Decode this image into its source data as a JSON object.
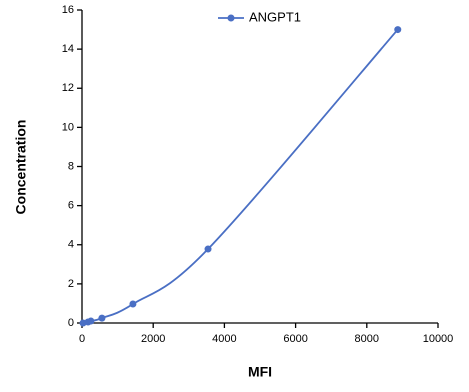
{
  "chart_data": {
    "type": "line",
    "x_label": "MFI",
    "y_label": "Concentration",
    "x": [
      30,
      170,
      250,
      560,
      1430,
      3540,
      8870
    ],
    "series": [
      {
        "name": "ANGPT1",
        "color": "#4a6fc4",
        "values": [
          0.0,
          0.05,
          0.1,
          0.25,
          0.97,
          3.78,
          15.0
        ]
      }
    ],
    "xlim": [
      0,
      10000
    ],
    "xticks": [
      0,
      2000,
      4000,
      6000,
      8000,
      10000
    ],
    "ylim": [
      0,
      16
    ],
    "yticks": [
      0,
      2,
      4,
      6,
      8,
      10,
      12,
      14,
      16
    ],
    "smooth": true,
    "legend": "top"
  }
}
